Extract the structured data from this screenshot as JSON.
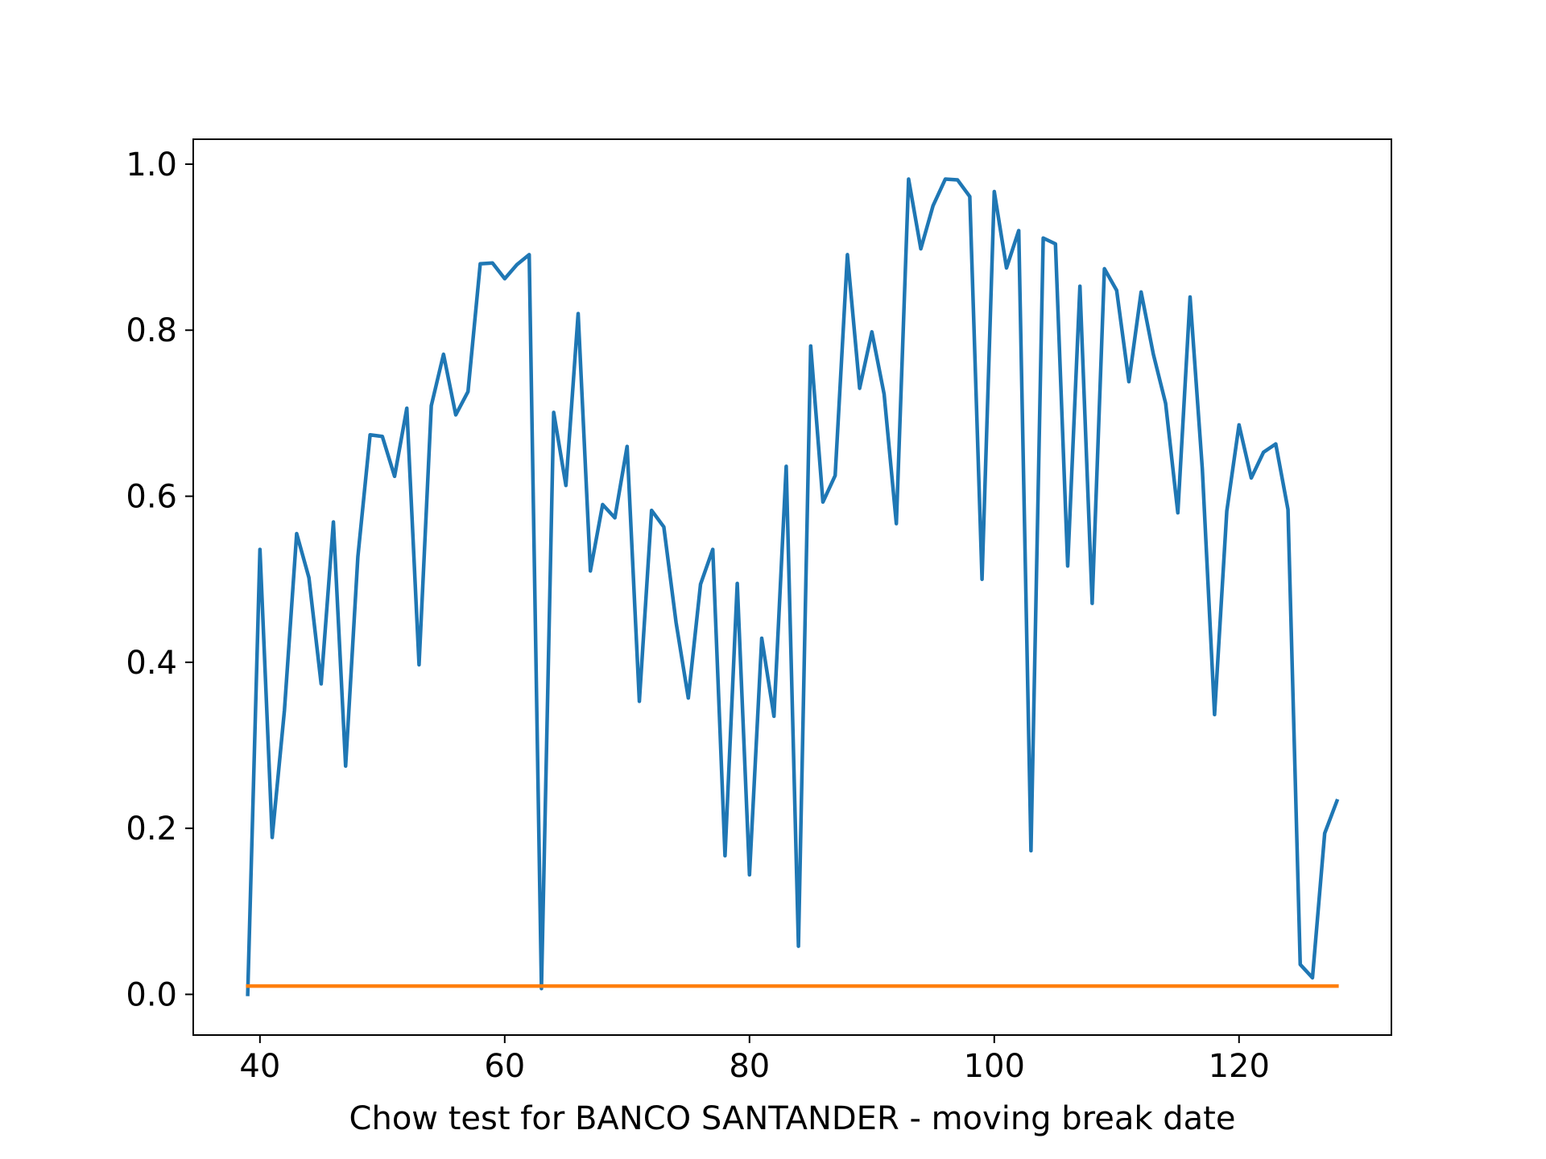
{
  "chart_data": {
    "type": "line",
    "xlabel": "Chow test for BANCO SANTANDER - moving break date",
    "ylabel": "",
    "title": "",
    "xlim": [
      34.55,
      132.45
    ],
    "ylim": [
      -0.049,
      1.03
    ],
    "x_ticks": [
      40,
      60,
      80,
      100,
      120
    ],
    "y_ticks": [
      0.0,
      0.2,
      0.4,
      0.6,
      0.8,
      1.0
    ],
    "x_tick_labels": [
      "40",
      "60",
      "80",
      "100",
      "120"
    ],
    "y_tick_labels": [
      "0.0",
      "0.2",
      "0.4",
      "0.6",
      "0.8",
      "1.0"
    ],
    "grid": false,
    "legend": "none",
    "series": [
      {
        "color": "#1f77b4",
        "x": [
          39,
          40,
          41,
          42,
          43,
          44,
          45,
          46,
          47,
          48,
          49,
          50,
          51,
          52,
          53,
          54,
          55,
          56,
          57,
          58,
          59,
          60,
          61,
          62,
          63,
          64,
          65,
          66,
          67,
          68,
          69,
          70,
          71,
          72,
          73,
          74,
          75,
          76,
          77,
          78,
          79,
          80,
          81,
          82,
          83,
          84,
          85,
          86,
          87,
          88,
          89,
          90,
          91,
          92,
          93,
          94,
          95,
          96,
          97,
          98,
          99,
          100,
          101,
          102,
          103,
          104,
          105,
          106,
          107,
          108,
          109,
          110,
          111,
          112,
          113,
          114,
          115,
          116,
          117,
          118,
          119,
          120,
          121,
          122,
          123,
          124,
          125,
          126,
          127,
          128
        ],
        "values": [
          0.0,
          0.536,
          0.189,
          0.342,
          0.555,
          0.502,
          0.374,
          0.569,
          0.275,
          0.527,
          0.674,
          0.672,
          0.624,
          0.706,
          0.397,
          0.709,
          0.771,
          0.698,
          0.726,
          0.88,
          0.881,
          0.862,
          0.879,
          0.891,
          0.007,
          0.701,
          0.613,
          0.82,
          0.51,
          0.59,
          0.574,
          0.66,
          0.353,
          0.583,
          0.563,
          0.448,
          0.357,
          0.494,
          0.536,
          0.167,
          0.495,
          0.144,
          0.429,
          0.335,
          0.636,
          0.058,
          0.781,
          0.593,
          0.625,
          0.891,
          0.73,
          0.798,
          0.723,
          0.567,
          0.982,
          0.898,
          0.95,
          0.982,
          0.981,
          0.961,
          0.5,
          0.967,
          0.875,
          0.92,
          0.173,
          0.911,
          0.904,
          0.516,
          0.853,
          0.471,
          0.874,
          0.848,
          0.738,
          0.846,
          0.771,
          0.712,
          0.58,
          0.84,
          0.633,
          0.337,
          0.582,
          0.686,
          0.622,
          0.653,
          0.663,
          0.584,
          0.036,
          0.02,
          0.194,
          0.233
        ]
      },
      {
        "color": "#ff7f0e",
        "x": [
          39,
          40,
          41,
          42,
          43,
          44,
          45,
          46,
          47,
          48,
          49,
          50,
          51,
          52,
          53,
          54,
          55,
          56,
          57,
          58,
          59,
          60,
          61,
          62,
          63,
          64,
          65,
          66,
          67,
          68,
          69,
          70,
          71,
          72,
          73,
          74,
          75,
          76,
          77,
          78,
          79,
          80,
          81,
          82,
          83,
          84,
          85,
          86,
          87,
          88,
          89,
          90,
          91,
          92,
          93,
          94,
          95,
          96,
          97,
          98,
          99,
          100,
          101,
          102,
          103,
          104,
          105,
          106,
          107,
          108,
          109,
          110,
          111,
          112,
          113,
          114,
          115,
          116,
          117,
          118,
          119,
          120,
          121,
          122,
          123,
          124,
          125,
          126,
          127,
          128
        ],
        "values": [
          0.01,
          0.01,
          0.01,
          0.01,
          0.01,
          0.01,
          0.01,
          0.01,
          0.01,
          0.01,
          0.01,
          0.01,
          0.01,
          0.01,
          0.01,
          0.01,
          0.01,
          0.01,
          0.01,
          0.01,
          0.01,
          0.01,
          0.01,
          0.01,
          0.01,
          0.01,
          0.01,
          0.01,
          0.01,
          0.01,
          0.01,
          0.01,
          0.01,
          0.01,
          0.01,
          0.01,
          0.01,
          0.01,
          0.01,
          0.01,
          0.01,
          0.01,
          0.01,
          0.01,
          0.01,
          0.01,
          0.01,
          0.01,
          0.01,
          0.01,
          0.01,
          0.01,
          0.01,
          0.01,
          0.01,
          0.01,
          0.01,
          0.01,
          0.01,
          0.01,
          0.01,
          0.01,
          0.01,
          0.01,
          0.01,
          0.01,
          0.01,
          0.01,
          0.01,
          0.01,
          0.01,
          0.01,
          0.01,
          0.01,
          0.01,
          0.01,
          0.01,
          0.01,
          0.01,
          0.01,
          0.01,
          0.01,
          0.01,
          0.01,
          0.01,
          0.01,
          0.01,
          0.01,
          0.01,
          0.01
        ]
      }
    ]
  }
}
